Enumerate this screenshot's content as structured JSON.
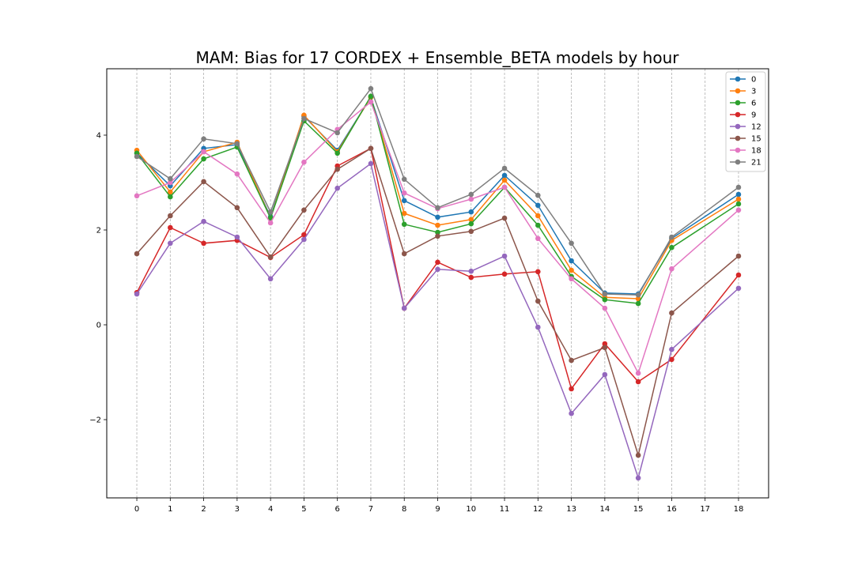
{
  "chart_data": {
    "type": "line",
    "title": "MAM: Bias for 17 CORDEX + Ensemble_BETA models by hour",
    "xlabel": "",
    "ylabel": "",
    "x": [
      0,
      1,
      2,
      3,
      4,
      5,
      6,
      7,
      8,
      9,
      10,
      11,
      12,
      13,
      14,
      15,
      16,
      18
    ],
    "x_ticks": [
      "0",
      "1",
      "2",
      "3",
      "4",
      "5",
      "6",
      "7",
      "8",
      "9",
      "10",
      "11",
      "12",
      "13",
      "14",
      "15",
      "16",
      "17",
      "18"
    ],
    "y_ticks": [
      "−2",
      "0",
      "2",
      "4"
    ],
    "xlim": [
      -0.9,
      18.9
    ],
    "ylim": [
      -3.65,
      5.4
    ],
    "grid": "vertical dashed",
    "legend_position": "top-right",
    "series": [
      {
        "name": "0",
        "color": "#1f77b4",
        "values": [
          3.62,
          2.93,
          3.72,
          3.8,
          2.28,
          4.4,
          3.68,
          4.8,
          2.62,
          2.27,
          2.38,
          3.15,
          2.52,
          1.35,
          0.67,
          0.65,
          1.82,
          2.75
        ]
      },
      {
        "name": "3",
        "color": "#ff7f0e",
        "values": [
          3.68,
          2.8,
          3.65,
          3.85,
          2.25,
          4.42,
          3.65,
          4.8,
          2.35,
          2.1,
          2.22,
          3.05,
          2.3,
          1.15,
          0.58,
          0.55,
          1.78,
          2.65
        ]
      },
      {
        "name": "6",
        "color": "#2ca02c",
        "values": [
          3.62,
          2.7,
          3.5,
          3.75,
          2.25,
          4.3,
          3.62,
          4.82,
          2.12,
          1.95,
          2.13,
          2.9,
          2.1,
          1.02,
          0.53,
          0.45,
          1.63,
          2.55
        ]
      },
      {
        "name": "9",
        "color": "#d62728",
        "values": [
          0.68,
          2.05,
          1.72,
          1.78,
          1.42,
          1.9,
          3.35,
          3.72,
          0.35,
          1.32,
          1.0,
          1.07,
          1.12,
          -1.35,
          -0.4,
          -1.2,
          -0.73,
          1.05
        ]
      },
      {
        "name": "12",
        "color": "#9467bd",
        "values": [
          0.65,
          1.72,
          2.18,
          1.85,
          0.97,
          1.8,
          2.88,
          3.4,
          0.35,
          1.17,
          1.13,
          1.45,
          -0.05,
          -1.87,
          -1.05,
          -3.23,
          -0.52,
          0.77
        ]
      },
      {
        "name": "15",
        "color": "#8c564b",
        "values": [
          1.5,
          2.3,
          3.02,
          2.47,
          1.43,
          2.42,
          3.28,
          3.72,
          1.5,
          1.87,
          1.97,
          2.25,
          0.5,
          -0.75,
          -0.48,
          -2.75,
          0.25,
          1.45
        ]
      },
      {
        "name": "18",
        "color": "#e377c2",
        "values": [
          2.72,
          3.0,
          3.65,
          3.18,
          2.15,
          3.43,
          4.12,
          4.7,
          2.78,
          2.45,
          2.65,
          2.9,
          1.82,
          0.97,
          0.35,
          -1.02,
          1.18,
          2.42
        ]
      },
      {
        "name": "21",
        "color": "#7f7f7f",
        "values": [
          3.55,
          3.08,
          3.92,
          3.82,
          2.38,
          4.35,
          4.05,
          4.98,
          3.07,
          2.47,
          2.75,
          3.3,
          2.73,
          1.72,
          0.65,
          0.63,
          1.85,
          2.9
        ]
      }
    ]
  }
}
